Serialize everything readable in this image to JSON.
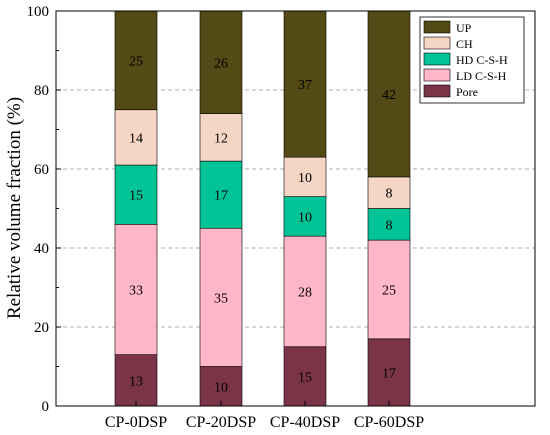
{
  "chart_data": {
    "type": "bar",
    "stacked": true,
    "categories": [
      "CP-0DSP",
      "CP-20DSP",
      "CP-40DSP",
      "CP-60DSP"
    ],
    "series": [
      {
        "name": "Pore",
        "color": "#7b3348",
        "values": [
          13,
          10,
          15,
          17
        ]
      },
      {
        "name": "LD C-S-H",
        "color": "#ffb6c8",
        "values": [
          33,
          35,
          28,
          25
        ]
      },
      {
        "name": "HD C-S-H",
        "color": "#00c496",
        "values": [
          15,
          17,
          10,
          8
        ]
      },
      {
        "name": "CH",
        "color": "#f5d5c3",
        "values": [
          14,
          12,
          10,
          8
        ]
      },
      {
        "name": "UP",
        "color": "#534a16",
        "values": [
          25,
          26,
          37,
          42
        ]
      }
    ],
    "legend_order": [
      "UP",
      "CH",
      "HD C-S-H",
      "LD C-S-H",
      "Pore"
    ],
    "ylabel": "Relative volume fraction (%)",
    "xlabel": "",
    "ylim": [
      0,
      100
    ],
    "yticks": [
      0,
      20,
      40,
      60,
      80,
      100
    ],
    "grid": "horizontal dashed",
    "legend_position": "top-right"
  }
}
